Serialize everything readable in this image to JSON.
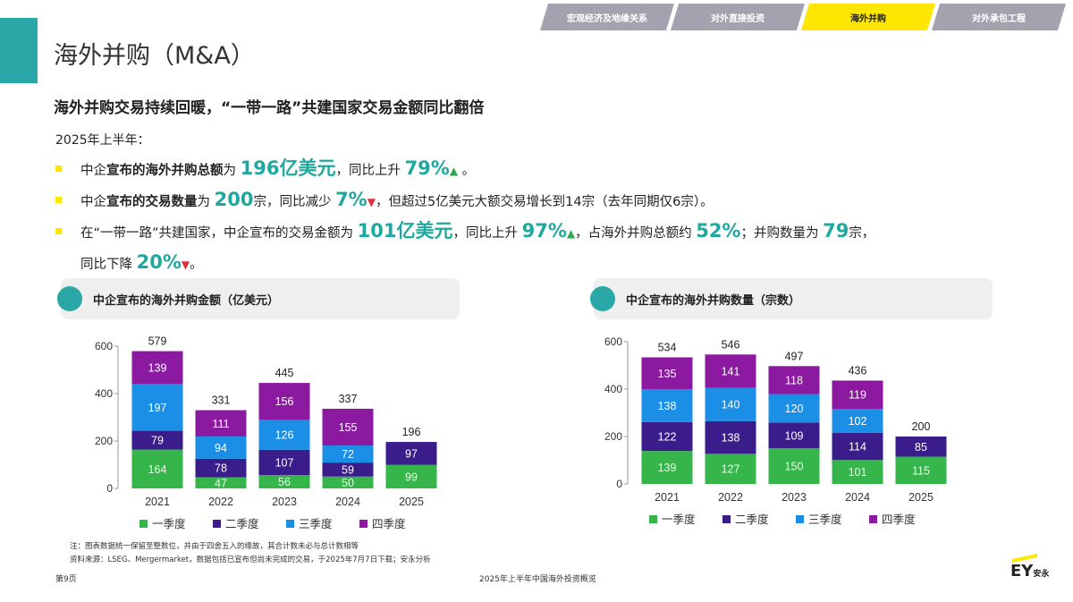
{
  "tabs": [
    "宏观经济及地缘关系",
    "对外直接投资",
    "海外并购",
    "对外承包工程"
  ],
  "title": "海外并购（M&A）",
  "headline": "海外并购交易持续回暖，“一带一路”共建国家交易金额同比翻倍",
  "intro": "2025年上半年：",
  "bullets": [
    {
      "a": "中企",
      "b": "宣布的海外并购总额",
      "c": "为 ",
      "h1": "196亿美元",
      "d": "，同比上升 ",
      "h2": "79%",
      "arrow": "▲",
      "e": " 。"
    },
    {
      "a": "中企",
      "b": "宣布的交易数量",
      "c": "为 ",
      "h1": "200",
      "d": "宗，同比减少 ",
      "h2": "7%",
      "arrow": "▼",
      "e": "，但超过5亿美元大额交易增长到14宗（去年同期仅6宗）。"
    },
    {
      "a": "在“一带一路”共建国家，中企宣布的交易金额为 ",
      "h1": "101亿美元",
      "b": "，同比上升 ",
      "h2": "97%",
      "arrow": "▲",
      "c": "，占海外并购总额约 ",
      "h3": "52%",
      "d": "；并购数量为 ",
      "h4": "79",
      "e": "宗，",
      "f": "同比下降 ",
      "h5": "20%",
      "arrow2": "▼",
      "g": "。"
    }
  ],
  "colors": {
    "q1": "#35b54a",
    "q2": "#3a1d8a",
    "q3": "#1b8fe6",
    "q4": "#8b1aa0",
    "accent": "#1fa8a0",
    "brand": "#ffe600"
  },
  "chart_data": [
    {
      "type": "bar",
      "stacked": true,
      "title": "中企宣布的海外并购金额（亿美元）",
      "categories": [
        "2021",
        "2022",
        "2023",
        "2024",
        "2025"
      ],
      "series": [
        {
          "name": "一季度",
          "values": [
            164,
            47,
            56,
            50,
            99
          ]
        },
        {
          "name": "二季度",
          "values": [
            79,
            78,
            107,
            59,
            97
          ]
        },
        {
          "name": "三季度",
          "values": [
            197,
            94,
            126,
            72,
            null
          ]
        },
        {
          "name": "四季度",
          "values": [
            139,
            111,
            156,
            155,
            null
          ]
        }
      ],
      "totals": [
        579,
        331,
        445,
        337,
        196
      ],
      "ylim": [
        0,
        600
      ],
      "yticks": [
        0,
        200,
        400,
        600
      ],
      "legend": "bottom"
    },
    {
      "type": "bar",
      "stacked": true,
      "title": "中企宣布的海外并购数量（宗数）",
      "categories": [
        "2021",
        "2022",
        "2023",
        "2024",
        "2025"
      ],
      "series": [
        {
          "name": "一季度",
          "values": [
            139,
            127,
            150,
            101,
            115
          ]
        },
        {
          "name": "二季度",
          "values": [
            122,
            138,
            109,
            114,
            85
          ]
        },
        {
          "name": "三季度",
          "values": [
            138,
            140,
            120,
            102,
            null
          ]
        },
        {
          "name": "四季度",
          "values": [
            135,
            141,
            118,
            119,
            null
          ]
        }
      ],
      "totals": [
        534,
        546,
        497,
        436,
        200
      ],
      "ylim": [
        0,
        600
      ],
      "yticks": [
        0,
        200,
        400,
        600
      ],
      "legend": "bottom"
    }
  ],
  "note": "注：图表数据统一保留至整数位，并由于四舍五入的缘故，其合计数未必与总计数相等",
  "source": "资料来源：LSEG、Mergermarket，数据包括已宣布但尚未完成的交易，于2025年7月7日下载；安永分析",
  "page": "第9页",
  "footer_title": "2025年上半年中国海外投资概览",
  "logo": {
    "main": "EY",
    "sub": "安永"
  }
}
